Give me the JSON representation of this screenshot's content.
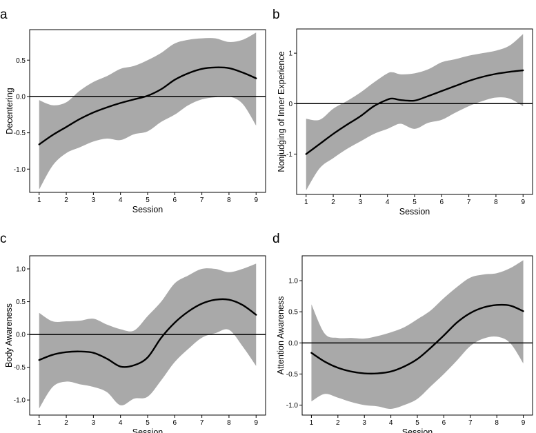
{
  "colors": {
    "band": "#a9a9a9",
    "line": "#000000",
    "reference": "#000000"
  },
  "chart_data": [
    {
      "panel": "a",
      "type": "line",
      "xlabel": "Session",
      "ylabel": "Decentering",
      "x": [
        1,
        2,
        3,
        4,
        5,
        6,
        7,
        8,
        9
      ],
      "xticks": [
        "1",
        "2",
        "3",
        "4",
        "5",
        "6",
        "7",
        "8",
        "9"
      ],
      "xlim": [
        0.65,
        9.35
      ],
      "ylim": [
        -1.32,
        0.92
      ],
      "yticks": [
        -1.0,
        -0.5,
        0.0,
        0.5
      ],
      "ytick_labels": [
        "-1.0",
        "-0.5",
        "0.0",
        "0.5"
      ],
      "reference_line": 0,
      "mean": {
        "x": [
          1,
          1.5,
          2,
          2.5,
          3,
          3.5,
          4,
          4.5,
          5,
          5.5,
          6,
          6.5,
          7,
          7.5,
          8,
          8.5,
          9
        ],
        "y": [
          -0.66,
          -0.53,
          -0.42,
          -0.31,
          -0.22,
          -0.15,
          -0.09,
          -0.04,
          0.01,
          0.1,
          0.23,
          0.32,
          0.38,
          0.4,
          0.39,
          0.33,
          0.25
        ]
      },
      "ci_upper": {
        "x": [
          1,
          1.5,
          2,
          2.5,
          3,
          3.5,
          4,
          4.5,
          5,
          5.5,
          6,
          6.5,
          7,
          7.5,
          8,
          8.5,
          9
        ],
        "y": [
          -0.05,
          -0.12,
          -0.08,
          0.08,
          0.2,
          0.28,
          0.38,
          0.42,
          0.5,
          0.6,
          0.73,
          0.78,
          0.8,
          0.8,
          0.75,
          0.78,
          0.88
        ]
      },
      "ci_lower": {
        "x": [
          1,
          1.5,
          2,
          2.5,
          3,
          3.5,
          4,
          4.5,
          5,
          5.5,
          6,
          6.5,
          7,
          7.5,
          8,
          8.5,
          9
        ],
        "y": [
          -1.28,
          -0.95,
          -0.78,
          -0.7,
          -0.62,
          -0.58,
          -0.6,
          -0.52,
          -0.48,
          -0.35,
          -0.25,
          -0.12,
          -0.04,
          -0.01,
          0.0,
          -0.1,
          -0.4
        ]
      }
    },
    {
      "panel": "b",
      "type": "line",
      "xlabel": "Session",
      "ylabel": "Nonjudging of Inner Experience",
      "x": [
        1,
        2,
        3,
        4,
        5,
        6,
        7,
        8,
        9
      ],
      "xticks": [
        "1",
        "2",
        "3",
        "4",
        "5",
        "6",
        "7",
        "8",
        "9"
      ],
      "xlim": [
        0.65,
        9.35
      ],
      "ylim": [
        -1.8,
        1.48
      ],
      "yticks": [
        -1,
        0,
        1
      ],
      "ytick_labels": [
        "-1",
        "0",
        "1"
      ],
      "reference_line": 0,
      "mean": {
        "x": [
          1,
          1.5,
          2,
          2.5,
          3,
          3.5,
          4,
          4.2,
          4.5,
          5,
          5.5,
          6,
          6.5,
          7,
          7.5,
          8,
          8.5,
          9
        ],
        "y": [
          -1.0,
          -0.8,
          -0.6,
          -0.42,
          -0.25,
          -0.05,
          0.08,
          0.1,
          0.07,
          0.06,
          0.15,
          0.25,
          0.35,
          0.45,
          0.53,
          0.59,
          0.63,
          0.66
        ]
      },
      "ci_upper": {
        "x": [
          1,
          1.5,
          2,
          2.5,
          3,
          3.5,
          4,
          4.2,
          4.5,
          5,
          5.5,
          6,
          6.5,
          7,
          7.5,
          8,
          8.5,
          9
        ],
        "y": [
          -0.3,
          -0.32,
          -0.1,
          0.05,
          0.22,
          0.42,
          0.6,
          0.62,
          0.58,
          0.6,
          0.68,
          0.82,
          0.88,
          0.95,
          1.0,
          1.05,
          1.15,
          1.38
        ]
      },
      "ci_lower": {
        "x": [
          1,
          1.5,
          2,
          2.5,
          3,
          3.5,
          4,
          4.2,
          4.5,
          5,
          5.5,
          6,
          6.5,
          7,
          7.5,
          8,
          8.5,
          9
        ],
        "y": [
          -1.72,
          -1.28,
          -1.08,
          -0.9,
          -0.75,
          -0.6,
          -0.5,
          -0.45,
          -0.4,
          -0.5,
          -0.38,
          -0.32,
          -0.18,
          -0.05,
          0.05,
          0.12,
          0.1,
          -0.05
        ]
      }
    },
    {
      "panel": "c",
      "type": "line",
      "xlabel": "Session",
      "ylabel": "Body Awareness",
      "x": [
        1,
        2,
        3,
        4,
        5,
        6,
        7,
        8,
        9
      ],
      "xticks": [
        "1",
        "2",
        "3",
        "4",
        "5",
        "6",
        "7",
        "8",
        "9"
      ],
      "xlim": [
        0.65,
        9.35
      ],
      "ylim": [
        -1.23,
        1.2
      ],
      "yticks": [
        -1.0,
        -0.5,
        0.0,
        0.5,
        1.0
      ],
      "ytick_labels": [
        "-1.0",
        "-0.5",
        "0.0",
        "0.5",
        "1.0"
      ],
      "reference_line": 0,
      "mean": {
        "x": [
          1,
          1.5,
          2,
          2.5,
          3,
          3.5,
          4,
          4.5,
          5,
          5.5,
          6,
          6.5,
          7,
          7.5,
          8,
          8.5,
          9
        ],
        "y": [
          -0.39,
          -0.31,
          -0.27,
          -0.26,
          -0.28,
          -0.37,
          -0.49,
          -0.47,
          -0.35,
          -0.05,
          0.18,
          0.35,
          0.47,
          0.53,
          0.53,
          0.45,
          0.3
        ]
      },
      "ci_upper": {
        "x": [
          1,
          1.5,
          2,
          2.5,
          3,
          3.5,
          4,
          4.5,
          5,
          5.5,
          6,
          6.5,
          7,
          7.5,
          8,
          8.5,
          9
        ],
        "y": [
          0.33,
          0.2,
          0.2,
          0.21,
          0.24,
          0.15,
          0.08,
          0.06,
          0.28,
          0.5,
          0.78,
          0.9,
          1.0,
          1.0,
          0.95,
          1.0,
          1.08
        ]
      },
      "ci_lower": {
        "x": [
          1,
          1.5,
          2,
          2.5,
          3,
          3.5,
          4,
          4.5,
          5,
          5.5,
          6,
          6.5,
          7,
          7.5,
          8,
          8.5,
          9
        ],
        "y": [
          -1.13,
          -0.8,
          -0.72,
          -0.76,
          -0.8,
          -0.88,
          -1.08,
          -0.98,
          -0.95,
          -0.7,
          -0.42,
          -0.22,
          -0.05,
          0.02,
          0.07,
          -0.18,
          -0.48
        ]
      }
    },
    {
      "panel": "d",
      "type": "line",
      "xlabel": "Session",
      "ylabel": "Attention Awareness",
      "x": [
        1,
        2,
        3,
        4,
        5,
        6,
        7,
        8,
        9
      ],
      "xticks": [
        "1",
        "2",
        "3",
        "4",
        "5",
        "6",
        "7",
        "8",
        "9"
      ],
      "xlim": [
        0.65,
        9.35
      ],
      "ylim": [
        -1.16,
        1.4
      ],
      "yticks": [
        -1.0,
        -0.5,
        0.0,
        0.5,
        1.0
      ],
      "ytick_labels": [
        "-1.0",
        "-0.5",
        "0.0",
        "0.5",
        "1.0"
      ],
      "reference_line": 0,
      "mean": {
        "x": [
          1,
          1.5,
          2,
          2.5,
          3,
          3.5,
          4,
          4.5,
          5,
          5.5,
          6,
          6.5,
          7,
          7.5,
          8,
          8.5,
          9
        ],
        "y": [
          -0.16,
          -0.3,
          -0.4,
          -0.46,
          -0.49,
          -0.49,
          -0.46,
          -0.38,
          -0.26,
          -0.08,
          0.12,
          0.33,
          0.48,
          0.57,
          0.61,
          0.6,
          0.51
        ]
      },
      "ci_upper": {
        "x": [
          1,
          1.5,
          2,
          2.5,
          3,
          3.5,
          4,
          4.5,
          5,
          5.5,
          6,
          6.5,
          7,
          7.5,
          8,
          8.5,
          9
        ],
        "y": [
          0.62,
          0.15,
          0.08,
          0.08,
          0.07,
          0.11,
          0.17,
          0.25,
          0.38,
          0.52,
          0.72,
          0.9,
          1.05,
          1.1,
          1.12,
          1.2,
          1.33
        ]
      },
      "ci_lower": {
        "x": [
          1,
          1.5,
          2,
          2.5,
          3,
          3.5,
          4,
          4.5,
          5,
          5.5,
          6,
          6.5,
          7,
          7.5,
          8,
          8.5,
          9
        ],
        "y": [
          -0.94,
          -0.82,
          -0.88,
          -0.95,
          -1.0,
          -1.02,
          -1.06,
          -1.0,
          -0.9,
          -0.7,
          -0.5,
          -0.28,
          -0.05,
          0.07,
          0.1,
          0.0,
          -0.33
        ]
      }
    }
  ]
}
